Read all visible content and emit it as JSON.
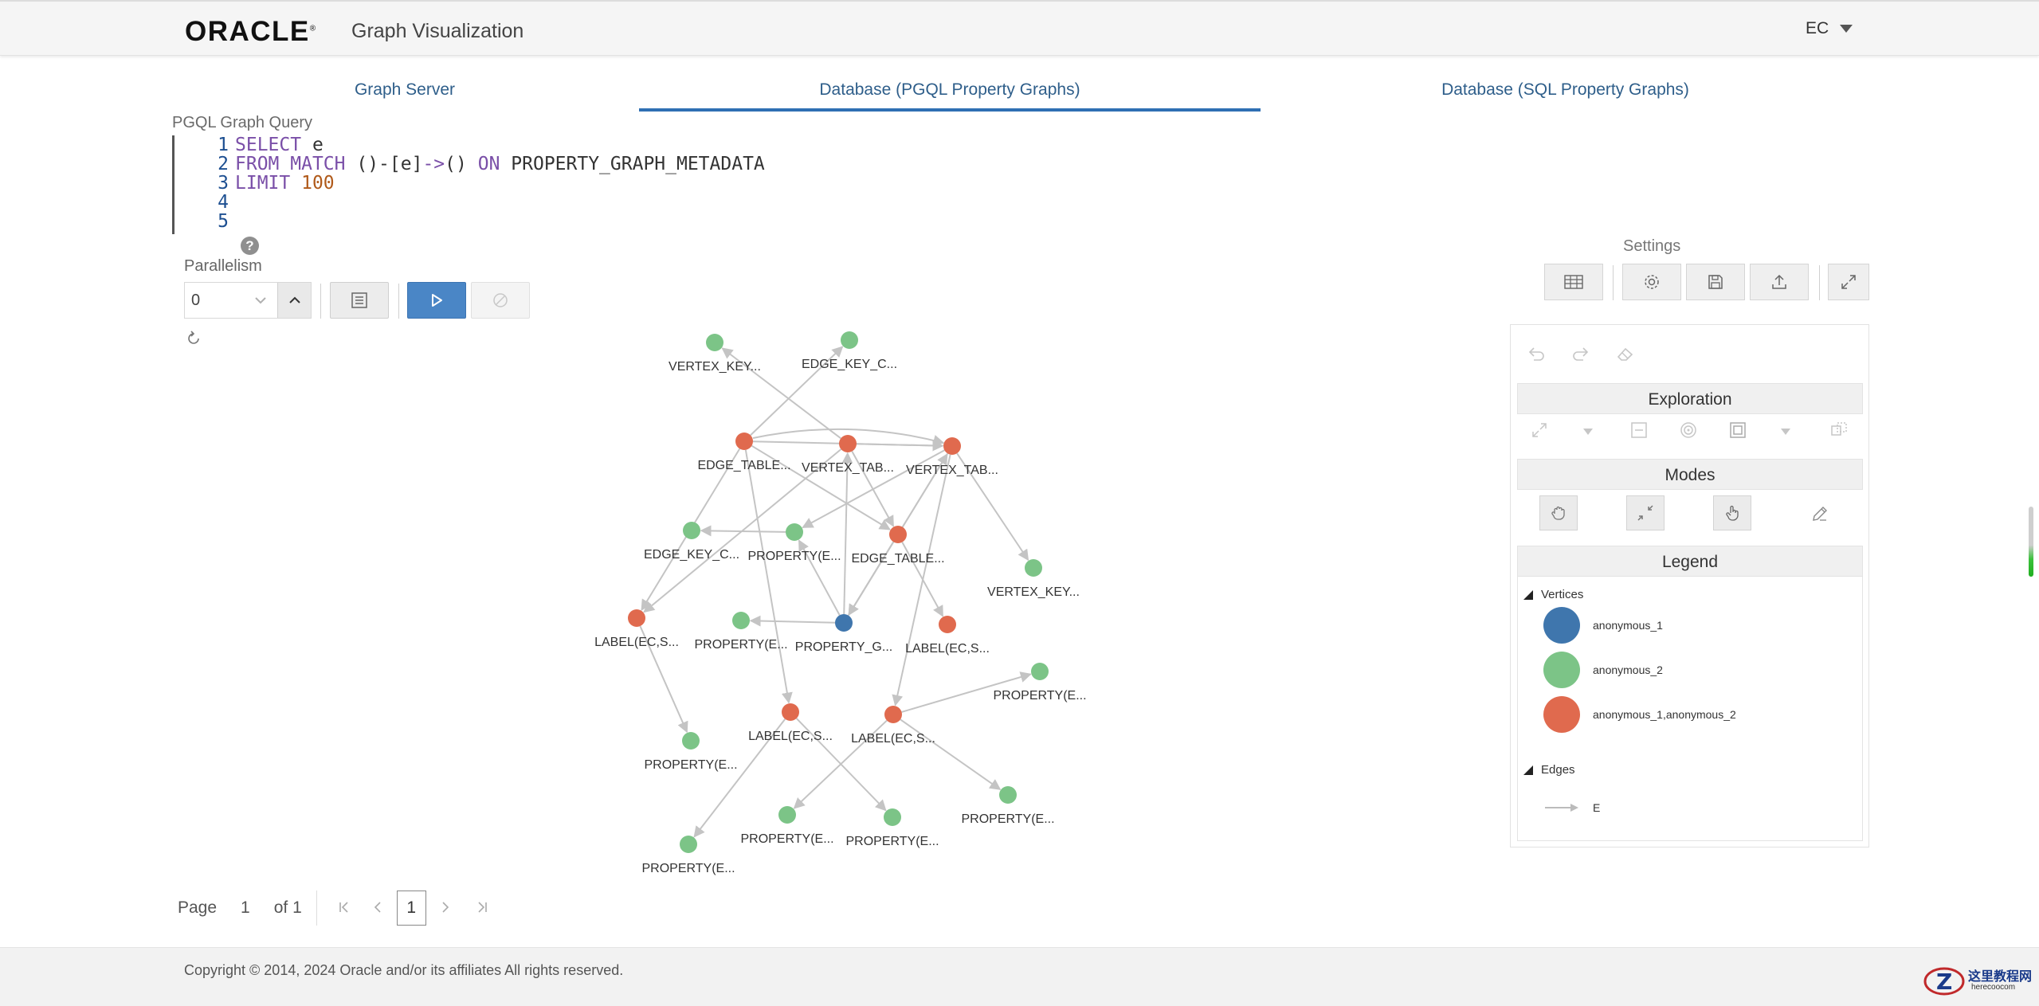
{
  "header": {
    "logo": "ORACLE",
    "logo_mark": "®",
    "title": "Graph Visualization",
    "user": "EC"
  },
  "tabs": [
    {
      "label": "Graph Server",
      "active": false
    },
    {
      "label": "Database (PGQL Property Graphs)",
      "active": true
    },
    {
      "label": "Database (SQL Property Graphs)",
      "active": false
    }
  ],
  "query": {
    "label": "PGQL Graph Query",
    "lines": [
      {
        "num": "1",
        "text": "SELECT e"
      },
      {
        "num": "2",
        "text": "FROM MATCH ()-[e]->() ON PROPERTY_GRAPH_METADATA"
      },
      {
        "num": "3",
        "text": "LIMIT 100"
      },
      {
        "num": "4",
        "text": ""
      },
      {
        "num": "5",
        "text": ""
      }
    ],
    "help": "?"
  },
  "parallelism": {
    "label": "Parallelism",
    "value": "0"
  },
  "settings": {
    "label": "Settings"
  },
  "panel": {
    "exploration_title": "Exploration",
    "modes_title": "Modes",
    "legend_title": "Legend",
    "vertices_label": "Vertices",
    "edges_label": "Edges",
    "vertex_items": [
      {
        "label": "anonymous_1",
        "color": "#3f76ad"
      },
      {
        "label": "anonymous_2",
        "color": "#7cc487"
      },
      {
        "label": "anonymous_1,anonymous_2",
        "color": "#e06a4e"
      }
    ],
    "edge_items": [
      {
        "label": "E",
        "color": "#bbbbbb"
      }
    ]
  },
  "graph": {
    "colors": {
      "blue": "#3f76ad",
      "green": "#7cc487",
      "red": "#e06a4e",
      "edge": "#c4c4c4"
    },
    "nodes": [
      {
        "id": "n1",
        "label": "VERTEX_KEY...",
        "color": "green"
      },
      {
        "id": "n2",
        "label": "EDGE_KEY_C...",
        "color": "green"
      },
      {
        "id": "n3",
        "label": "EDGE_TABLE...",
        "color": "red"
      },
      {
        "id": "n4",
        "label": "VERTEX_TAB...",
        "color": "red"
      },
      {
        "id": "n5",
        "label": "VERTEX_TAB...",
        "color": "red"
      },
      {
        "id": "n6",
        "label": "EDGE_KEY_C...",
        "color": "green"
      },
      {
        "id": "n7",
        "label": "PROPERTY(E...",
        "color": "green"
      },
      {
        "id": "n8",
        "label": "EDGE_TABLE...",
        "color": "red"
      },
      {
        "id": "n9",
        "label": "VERTEX_KEY...",
        "color": "green"
      },
      {
        "id": "n10",
        "label": "LABEL(EC,S...",
        "color": "red"
      },
      {
        "id": "n11",
        "label": "PROPERTY(E...",
        "color": "green"
      },
      {
        "id": "n12",
        "label": "PROPERTY_G...",
        "color": "blue"
      },
      {
        "id": "n13",
        "label": "LABEL(EC,S...",
        "color": "red"
      },
      {
        "id": "n14",
        "label": "PROPERTY(E...",
        "color": "green"
      },
      {
        "id": "n15",
        "label": "PROPERTY(E...",
        "color": "green"
      },
      {
        "id": "n16",
        "label": "LABEL(EC,S...",
        "color": "red"
      },
      {
        "id": "n17",
        "label": "LABEL(EC,S...",
        "color": "red"
      },
      {
        "id": "n18",
        "label": "PROPERTY(E...",
        "color": "green"
      },
      {
        "id": "n19",
        "label": "PROPERTY(E...",
        "color": "green"
      },
      {
        "id": "n20",
        "label": "PROPERTY(E...",
        "color": "green"
      },
      {
        "id": "n21",
        "label": "PROPERTY(E...",
        "color": "green"
      }
    ],
    "edges": [
      [
        "n4",
        "n1"
      ],
      [
        "n3",
        "n2"
      ],
      [
        "n3",
        "n5"
      ],
      [
        "n4",
        "n5"
      ],
      [
        "n5",
        "n9"
      ],
      [
        "n3",
        "n8"
      ],
      [
        "n4",
        "n8"
      ],
      [
        "n3",
        "n16"
      ],
      [
        "n3",
        "n10"
      ],
      [
        "n5",
        "n12"
      ],
      [
        "n5",
        "n7"
      ],
      [
        "n7",
        "n6"
      ],
      [
        "n12",
        "n11"
      ],
      [
        "n12",
        "n4"
      ],
      [
        "n12",
        "n7"
      ],
      [
        "n8",
        "n13"
      ],
      [
        "n8",
        "n12"
      ],
      [
        "n5",
        "n17"
      ],
      [
        "n4",
        "n10"
      ],
      [
        "n10",
        "n15"
      ],
      [
        "n16",
        "n19"
      ],
      [
        "n17",
        "n18"
      ],
      [
        "n17",
        "n14"
      ],
      [
        "n17",
        "n20"
      ],
      [
        "n16",
        "n21"
      ],
      [
        "n12",
        "n5"
      ]
    ]
  },
  "pager": {
    "page_label": "Page",
    "page_value": "1",
    "of_label": "of 1",
    "current": "1"
  },
  "footer": {
    "copyright": "Copyright © 2014, 2024 Oracle and/or its affiliates All rights reserved.",
    "watermark": "这里教程网",
    "watermark_sub": "herecoocom"
  }
}
